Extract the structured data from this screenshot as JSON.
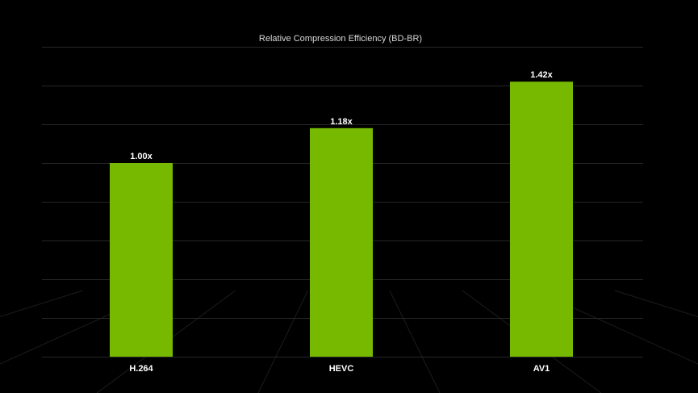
{
  "chart_data": {
    "type": "bar",
    "title": "Relative Compression Efficiency  (BD-BR)",
    "xlabel": "",
    "ylabel": "",
    "categories": [
      "H.264",
      "HEVC",
      "AV1"
    ],
    "values": [
      1.0,
      1.18,
      1.42
    ],
    "value_labels": [
      "1.00x",
      "1.18x",
      "1.42x"
    ],
    "ylim": [
      0,
      1.6
    ],
    "grid": true,
    "legend": "none",
    "bar_color": "#76b900",
    "background_color": "#000000"
  }
}
